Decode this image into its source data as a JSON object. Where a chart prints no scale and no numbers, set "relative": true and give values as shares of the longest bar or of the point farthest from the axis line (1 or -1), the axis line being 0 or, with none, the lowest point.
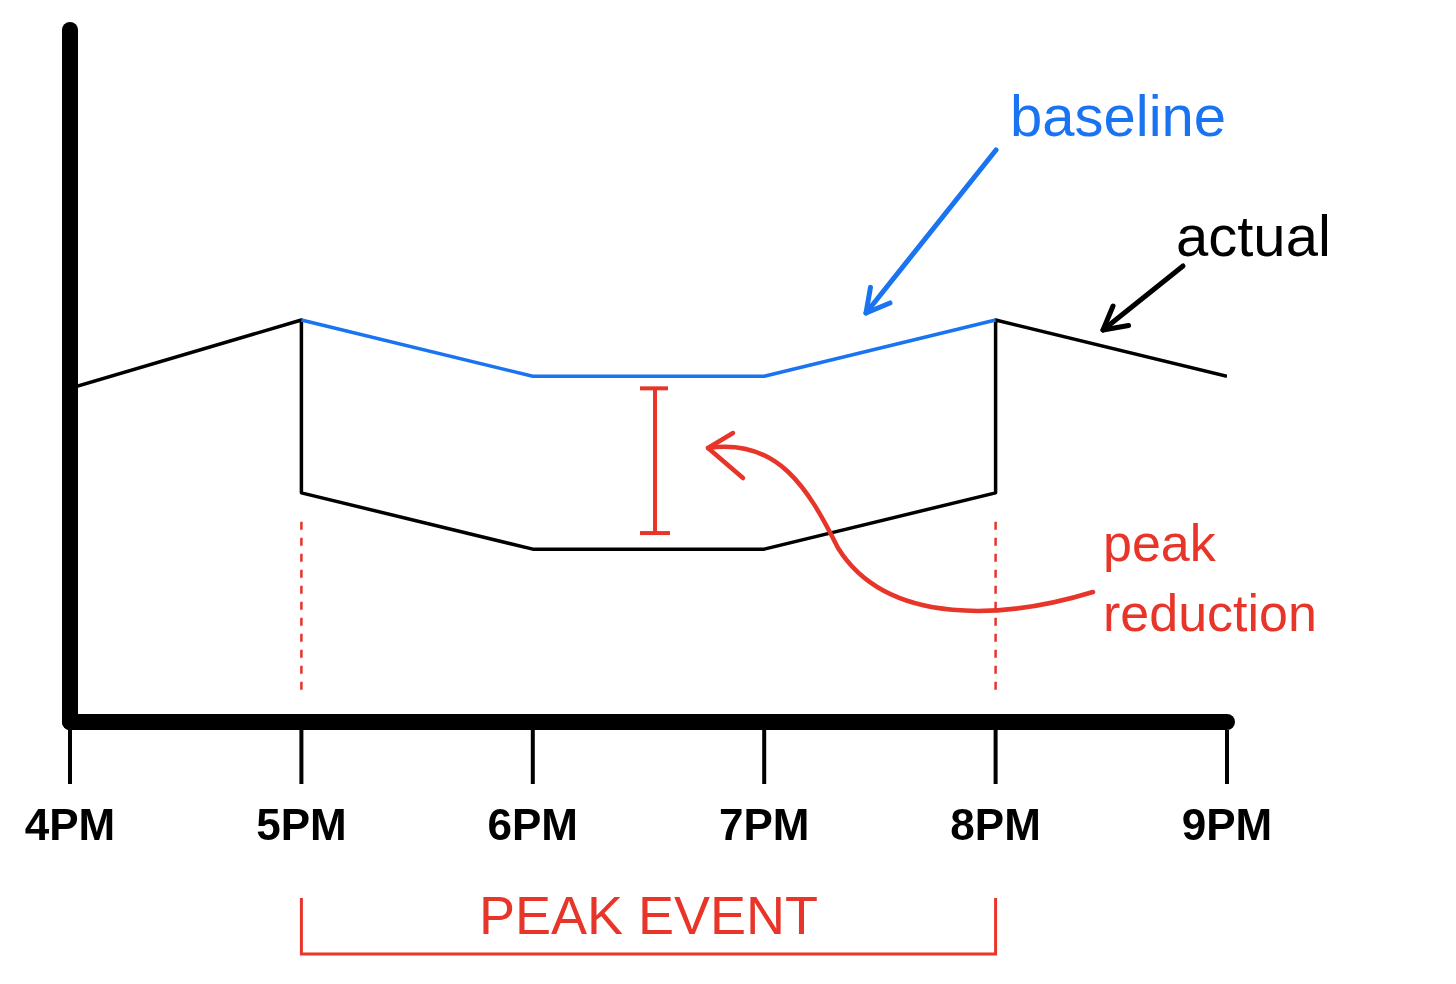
{
  "chart_data": {
    "type": "line",
    "relative": true,
    "categories": [
      "4PM",
      "5PM",
      "6PM",
      "7PM",
      "8PM",
      "9PM"
    ],
    "series": [
      {
        "name": "actual",
        "color": "#000000",
        "x": [
          "4PM",
          "5PM",
          "5PM",
          "6PM",
          "7PM",
          "8PM",
          "8PM",
          "9PM"
        ],
        "values": [
          0.83,
          1,
          0.57,
          0.43,
          0.43,
          0.57,
          1,
          0.86
        ]
      },
      {
        "name": "baseline",
        "color": "#1a73f0",
        "x": [
          "5PM",
          "6PM",
          "7PM",
          "8PM"
        ],
        "values": [
          1,
          0.86,
          0.86,
          1
        ]
      }
    ],
    "ref_lines": [
      {
        "axis": "x",
        "value": "5PM",
        "color": "#e8352a",
        "line_style": "dashed"
      },
      {
        "axis": "x",
        "value": "8PM",
        "color": "#e8352a",
        "line_style": "dashed"
      }
    ],
    "annotations": [
      "peak reduction",
      "PEAK EVENT"
    ],
    "marker": "none",
    "line_style": "solid"
  }
}
